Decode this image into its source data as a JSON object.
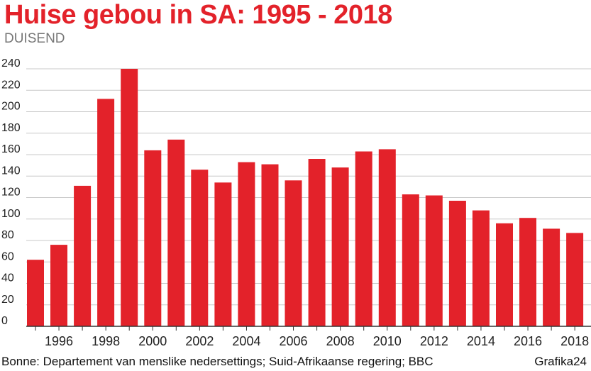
{
  "chart_data": {
    "type": "bar",
    "title": "Huise gebou in SA: 1995 - 2018",
    "unit_label": "DUISEND",
    "categories": [
      "1995",
      "1996",
      "1997",
      "1998",
      "1999",
      "2000",
      "2001",
      "2002",
      "2003",
      "2004",
      "2005",
      "2006",
      "2007",
      "2008",
      "2009",
      "2010",
      "2011",
      "2012",
      "2013",
      "2014",
      "2015",
      "2016",
      "2017",
      "2018"
    ],
    "x_tick_labels": [
      "1996",
      "1998",
      "2000",
      "2002",
      "2004",
      "2006",
      "2008",
      "2010",
      "2012",
      "2014",
      "2016",
      "2018"
    ],
    "values": [
      62,
      76,
      131,
      212,
      240,
      164,
      174,
      146,
      134,
      153,
      151,
      136,
      156,
      148,
      163,
      165,
      123,
      122,
      117,
      108,
      96,
      101,
      91,
      87
    ],
    "y_ticks": [
      0,
      20,
      40,
      60,
      80,
      100,
      120,
      140,
      160,
      180,
      200,
      220,
      240
    ],
    "ylim": [
      0,
      240
    ],
    "grid": true,
    "legend": "none",
    "bar_color": "#e3222a",
    "grid_color": "#c8c8c8",
    "axis_color": "#333333"
  },
  "footer": {
    "source": "Bonne: Departement van menslike nedersettings; Suid-Afrikaanse regering; BBC",
    "credit": "Grafika24"
  }
}
